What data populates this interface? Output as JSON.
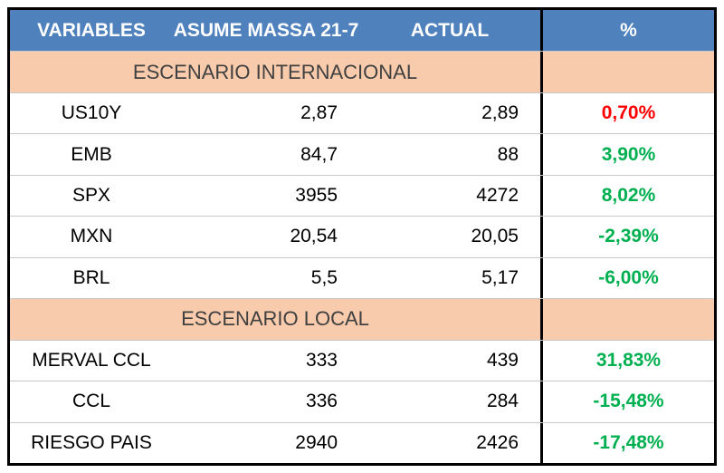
{
  "colors": {
    "header-bg": "#4f81bd",
    "header-text": "#ffffff",
    "section-bg": "#f8cbad",
    "section-text": "#404040",
    "pct-red": "#ff0000",
    "pct-green": "#00b050",
    "border": "#000000"
  },
  "chart_data": {
    "type": "table",
    "columns": [
      "VARIABLES",
      "ASUME MASSA 21-7",
      "ACTUAL",
      "%"
    ],
    "sections": [
      {
        "title": "ESCENARIO INTERNACIONAL",
        "rows": [
          {
            "variable": "US10Y",
            "asume": "2,87",
            "actual": "2,89",
            "percent": "0,70%",
            "trend": "red"
          },
          {
            "variable": "EMB",
            "asume": "84,7",
            "actual": "88",
            "percent": "3,90%",
            "trend": "green"
          },
          {
            "variable": "SPX",
            "asume": "3955",
            "actual": "4272",
            "percent": "8,02%",
            "trend": "green"
          },
          {
            "variable": "MXN",
            "asume": "20,54",
            "actual": "20,05",
            "percent": "-2,39%",
            "trend": "green"
          },
          {
            "variable": "BRL",
            "asume": "5,5",
            "actual": "5,17",
            "percent": "-6,00%",
            "trend": "green"
          }
        ]
      },
      {
        "title": "ESCENARIO LOCAL",
        "rows": [
          {
            "variable": "MERVAL CCL",
            "asume": "333",
            "actual": "439",
            "percent": "31,83%",
            "trend": "green"
          },
          {
            "variable": "CCL",
            "asume": "336",
            "actual": "284",
            "percent": "-15,48%",
            "trend": "green"
          },
          {
            "variable": "RIESGO PAIS",
            "asume": "2940",
            "actual": "2426",
            "percent": "-17,48%",
            "trend": "green"
          }
        ]
      }
    ]
  }
}
